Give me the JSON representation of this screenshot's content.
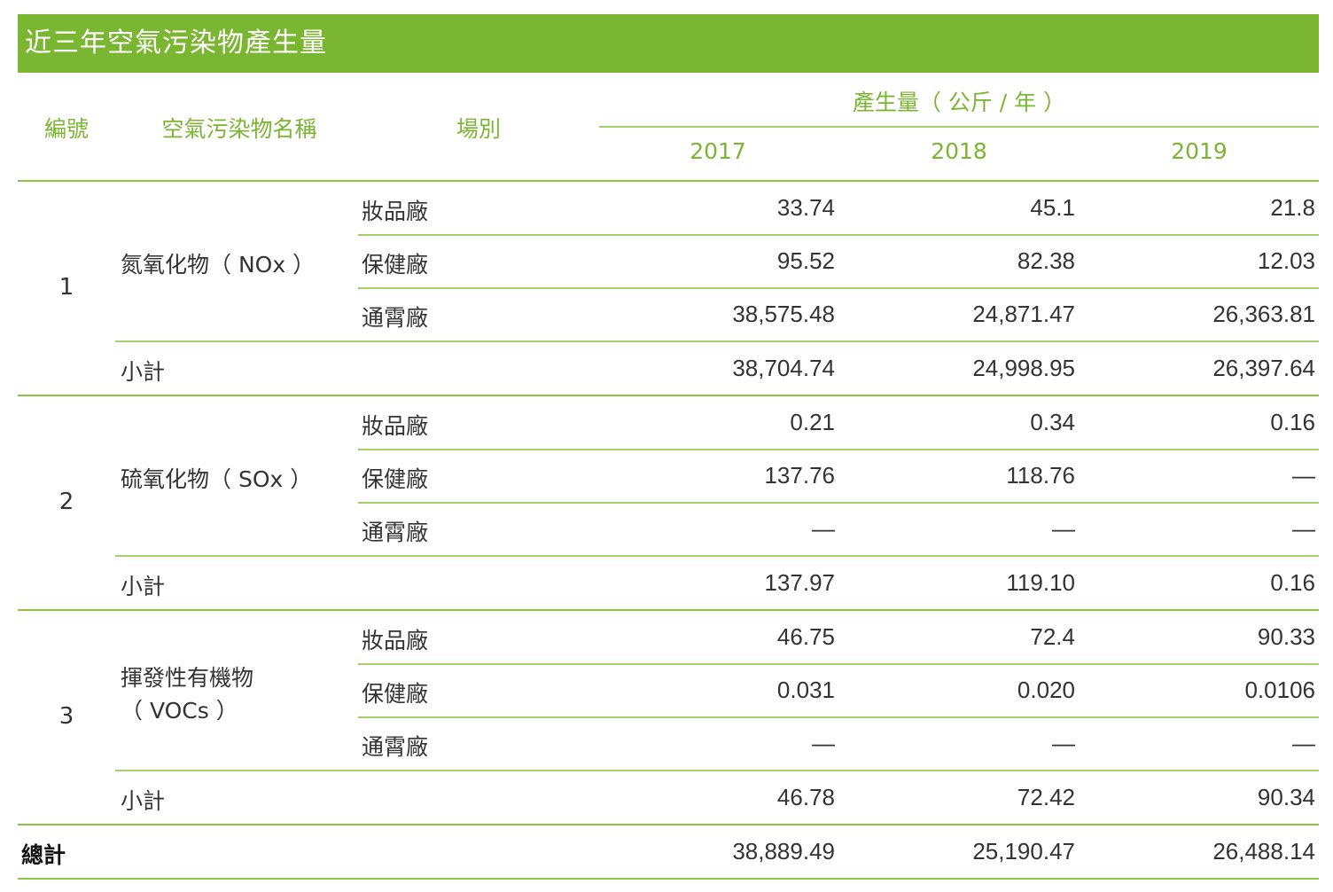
{
  "title": "近三年空氣污染物產生量",
  "headers": {
    "id": "編號",
    "pollutant": "空氣污染物名稱",
    "site": "場別",
    "amount": "產生量（ 公斤 / 年 ）",
    "years": [
      "2017",
      "2018",
      "2019"
    ]
  },
  "groups": [
    {
      "id": "1",
      "name": "氮氧化物（ NOx ）",
      "rows": [
        {
          "site": "妝品廠",
          "values": [
            "33.74",
            "45.1",
            "21.8"
          ]
        },
        {
          "site": "保健廠",
          "values": [
            "95.52",
            "82.38",
            "12.03"
          ]
        },
        {
          "site": "通霄廠",
          "values": [
            "38,575.48",
            "24,871.47",
            "26,363.81"
          ]
        }
      ],
      "subtotal_label": "小計",
      "subtotal": [
        "38,704.74",
        "24,998.95",
        "26,397.64"
      ]
    },
    {
      "id": "2",
      "name": "硫氧化物（ SOx ）",
      "rows": [
        {
          "site": "妝品廠",
          "values": [
            "0.21",
            "0.34",
            "0.16"
          ]
        },
        {
          "site": "保健廠",
          "values": [
            "137.76",
            "118.76",
            "—"
          ]
        },
        {
          "site": "通霄廠",
          "values": [
            "—",
            "—",
            "—"
          ]
        }
      ],
      "subtotal_label": "小計",
      "subtotal": [
        "137.97",
        "119.10",
        "0.16"
      ]
    },
    {
      "id": "3",
      "name_line1": "揮發性有機物",
      "name_line2": "（ VOCs ）",
      "rows": [
        {
          "site": "妝品廠",
          "values": [
            "46.75",
            "72.4",
            "90.33"
          ]
        },
        {
          "site": "保健廠",
          "values": [
            "0.031",
            "0.020",
            "0.0106"
          ]
        },
        {
          "site": "通霄廠",
          "values": [
            "—",
            "—",
            "—"
          ]
        }
      ],
      "subtotal_label": "小計",
      "subtotal": [
        "46.78",
        "72.42",
        "90.34"
      ]
    }
  ],
  "total": {
    "label": "總計",
    "values": [
      "38,889.49",
      "25,190.47",
      "26,488.14"
    ]
  }
}
